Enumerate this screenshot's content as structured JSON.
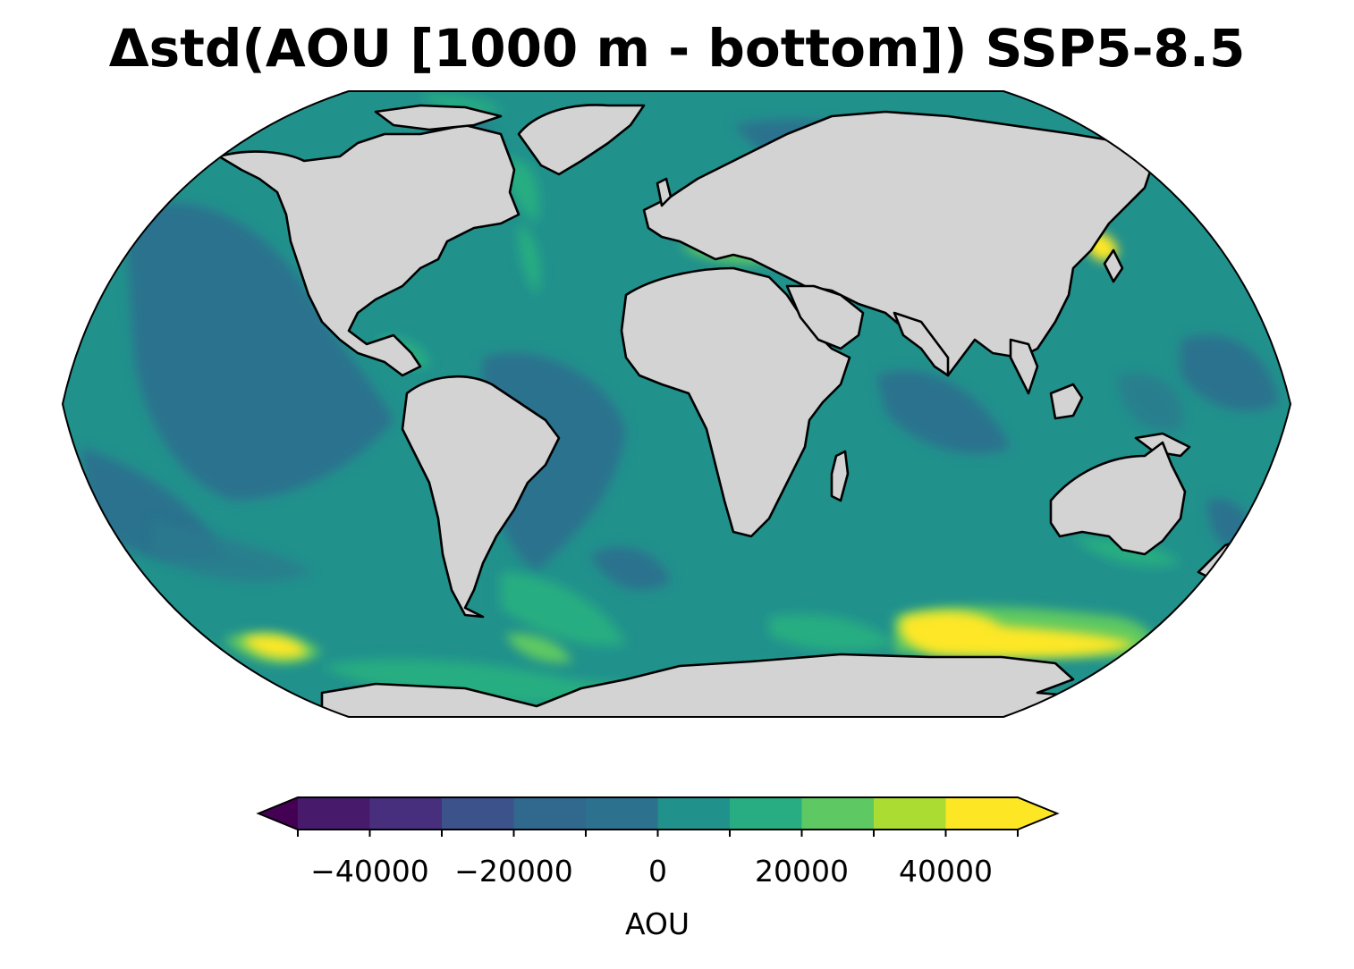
{
  "map": {
    "title": "Δstd(AOU [1000 m - bottom]) SSP5-8.5",
    "projection": "Robinson",
    "land_color": "#d3d3d3",
    "coastline_color": "#000000",
    "colormap": "viridis",
    "colorbar": {
      "label": "AOU",
      "min": -50000,
      "max": 50000,
      "step": 10000,
      "extend": "both",
      "tick_values": [
        -40000,
        -20000,
        0,
        20000,
        40000
      ],
      "tick_labels": [
        "−40000",
        "−20000",
        "0",
        "20000",
        "40000"
      ],
      "colors": [
        "#440154",
        "#481a6c",
        "#472f7d",
        "#3b528b",
        "#31688e",
        "#2c728e",
        "#21918c",
        "#27ad81",
        "#5ec962",
        "#aadc32",
        "#fde725"
      ]
    }
  }
}
